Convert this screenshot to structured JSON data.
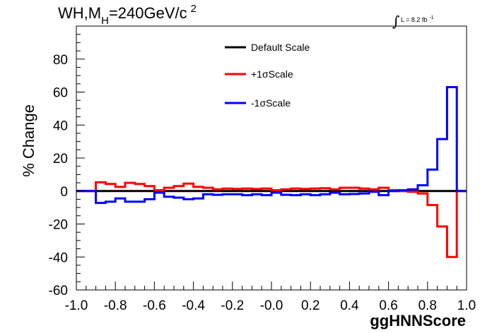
{
  "title": {
    "prefix": "WH,M",
    "sub": "H",
    "suffix": "=240GeV/c",
    "sup": "2"
  },
  "lumi": {
    "integral": "∫",
    "text": "L = 8.2 fb",
    "sup": "-1"
  },
  "chart_data": {
    "type": "line",
    "xlabel": "ggHNNScore",
    "ylabel": "% Change",
    "xlim": [
      -1.0,
      1.0
    ],
    "ylim": [
      -60,
      100
    ],
    "xticks": [
      "-1.0",
      "-0.8",
      "-0.6",
      "-0.4",
      "-0.2",
      "-0.0",
      "0.2",
      "0.4",
      "0.6",
      "0.8",
      "1.0"
    ],
    "yticks": [
      "-60",
      "-40",
      "-20",
      "0",
      "20",
      "40",
      "60",
      "80"
    ],
    "grid": false,
    "legend_position": "top-center",
    "bin_edges": [
      -1.0,
      -0.9,
      -0.85,
      -0.8,
      -0.75,
      -0.7,
      -0.65,
      -0.6,
      -0.55,
      -0.5,
      -0.45,
      -0.4,
      -0.35,
      -0.3,
      -0.25,
      -0.2,
      -0.15,
      -0.1,
      -0.05,
      0.0,
      0.05,
      0.1,
      0.15,
      0.2,
      0.25,
      0.3,
      0.35,
      0.4,
      0.45,
      0.5,
      0.55,
      0.6,
      0.65,
      0.7,
      0.75,
      0.8,
      0.85,
      0.9,
      0.95,
      1.0
    ],
    "series": [
      {
        "name": "Default Scale",
        "color": "#000000",
        "values": [
          0,
          0,
          0,
          0,
          0,
          0,
          0,
          0,
          0,
          0,
          0,
          0,
          0,
          0,
          0,
          0,
          0,
          0,
          0,
          0,
          0,
          0,
          0,
          0,
          0,
          0,
          0,
          0,
          0,
          0,
          0,
          0,
          0,
          0,
          0,
          0,
          0,
          0,
          0
        ]
      },
      {
        "name": "+1σScale",
        "color": "#ff0000",
        "values": [
          0,
          5.3,
          4.3,
          2.5,
          5.0,
          4.3,
          3.0,
          0.5,
          2.0,
          3.0,
          4.5,
          2.5,
          2.0,
          1.0,
          1.5,
          1.3,
          1.5,
          1.2,
          1.5,
          0.5,
          1.0,
          1.5,
          1.3,
          1.5,
          1.7,
          1.0,
          2.0,
          2.0,
          1.5,
          1.0,
          2.0,
          0.5,
          0.0,
          -0.5,
          -1.5,
          -8.5,
          -21.5,
          -40.0,
          0
        ]
      },
      {
        "name": "-1σScale",
        "color": "#0000ff",
        "values": [
          0,
          -7.2,
          -6.5,
          -4.5,
          -6.5,
          -6.5,
          -5.0,
          -1.0,
          -3.5,
          -4.0,
          -5.0,
          -4.5,
          -2.0,
          -2.3,
          -2.0,
          -2.0,
          -2.5,
          -2.0,
          -2.5,
          -1.0,
          -2.3,
          -2.5,
          -2.0,
          -2.5,
          -2.0,
          -1.0,
          -2.0,
          -1.8,
          -1.5,
          -0.5,
          -2.5,
          0.0,
          0.5,
          1.0,
          3.5,
          13.0,
          31.5,
          63.0,
          0
        ]
      }
    ]
  }
}
